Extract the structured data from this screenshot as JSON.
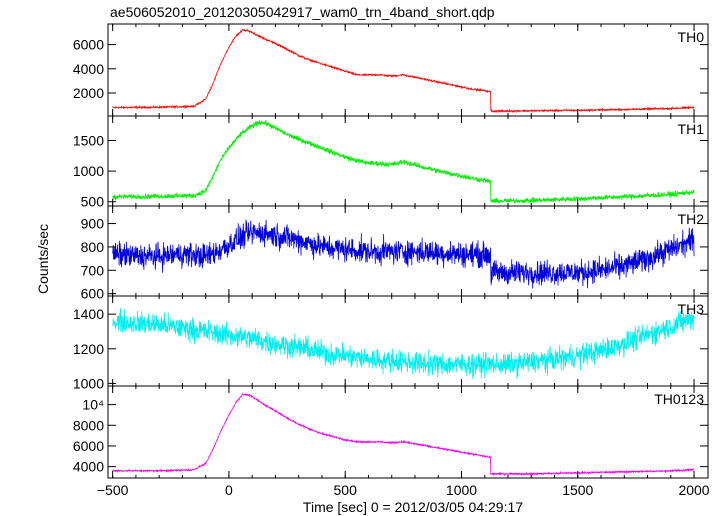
{
  "chart_data": {
    "type": "line",
    "title": "ae506052010_20120305042917_wam0_trn_4band_short.qdp",
    "xlabel": "Time [sec] 0 = 2012/03/05 04:29:17",
    "ylabel": "Counts/sec",
    "xlim": [
      -520,
      2060
    ],
    "xticks": [
      {
        "value": -500,
        "label": "−500"
      },
      {
        "value": 0,
        "label": "0"
      },
      {
        "value": 500,
        "label": "500"
      },
      {
        "value": 1000,
        "label": "1000"
      },
      {
        "value": 1500,
        "label": "1500"
      },
      {
        "value": 2000,
        "label": "2000"
      }
    ],
    "panels": [
      {
        "name": "TH0",
        "color": "#ff0000",
        "ylim": [
          100,
          7700
        ],
        "yticks": [
          {
            "value": 2000,
            "label": "2000"
          },
          {
            "value": 4000,
            "label": "4000"
          },
          {
            "value": 6000,
            "label": "6000"
          }
        ],
        "noise": 60,
        "x": [
          -500,
          -300,
          -150,
          -100,
          -70,
          -40,
          0,
          30,
          60,
          90,
          120,
          150,
          200,
          250,
          300,
          350,
          400,
          450,
          500,
          550,
          600,
          650,
          700,
          750,
          800,
          850,
          900,
          950,
          1000,
          1050,
          1100,
          1125,
          1126,
          1135,
          1300,
          1500,
          1700,
          1900,
          2000
        ],
        "y": [
          800,
          820,
          900,
          1500,
          2700,
          4200,
          5800,
          6700,
          7200,
          7100,
          6800,
          6500,
          6100,
          5600,
          5100,
          4700,
          4400,
          4100,
          3800,
          3500,
          3500,
          3500,
          3400,
          3500,
          3300,
          3100,
          2900,
          2700,
          2500,
          2300,
          2200,
          2100,
          550,
          500,
          530,
          570,
          640,
          720,
          800
        ]
      },
      {
        "name": "TH1",
        "color": "#00ee00",
        "ylim": [
          430,
          1900
        ],
        "yticks": [
          {
            "value": 500,
            "label": "500"
          },
          {
            "value": 1000,
            "label": "1000"
          },
          {
            "value": 1500,
            "label": "1500"
          }
        ],
        "noise": 35,
        "x": [
          -500,
          -300,
          -150,
          -100,
          -70,
          -40,
          0,
          50,
          100,
          130,
          160,
          200,
          250,
          300,
          350,
          400,
          450,
          500,
          550,
          600,
          650,
          700,
          750,
          800,
          850,
          900,
          950,
          1000,
          1050,
          1100,
          1125,
          1126,
          1135,
          1300,
          1500,
          1700,
          1900,
          2000
        ],
        "y": [
          580,
          590,
          600,
          680,
          900,
          1150,
          1380,
          1600,
          1740,
          1800,
          1780,
          1700,
          1600,
          1520,
          1450,
          1380,
          1300,
          1230,
          1170,
          1130,
          1120,
          1110,
          1150,
          1100,
          1050,
          1000,
          960,
          920,
          880,
          850,
          820,
          520,
          510,
          520,
          550,
          580,
          620,
          660
        ]
      },
      {
        "name": "TH2",
        "color": "#0000dd",
        "ylim": [
          590,
          975
        ],
        "yticks": [
          {
            "value": 600,
            "label": "600"
          },
          {
            "value": 700,
            "label": "700"
          },
          {
            "value": 800,
            "label": "800"
          },
          {
            "value": 900,
            "label": "900"
          }
        ],
        "noise": 45,
        "x": [
          -500,
          -400,
          -300,
          -200,
          -100,
          -50,
          0,
          50,
          100,
          150,
          200,
          300,
          400,
          500,
          600,
          700,
          800,
          900,
          1000,
          1125,
          1126,
          1200,
          1300,
          1400,
          1500,
          1600,
          1700,
          1800,
          1900,
          2000
        ],
        "y": [
          770,
          760,
          760,
          770,
          760,
          780,
          810,
          840,
          860,
          860,
          850,
          830,
          800,
          790,
          780,
          780,
          780,
          775,
          770,
          765,
          690,
          690,
          690,
          690,
          690,
          700,
          720,
          750,
          790,
          830
        ]
      },
      {
        "name": "TH3",
        "color": "#00eeee",
        "ylim": [
          985,
          1505
        ],
        "yticks": [
          {
            "value": 1000,
            "label": "1000"
          },
          {
            "value": 1200,
            "label": "1200"
          },
          {
            "value": 1400,
            "label": "1400"
          }
        ],
        "noise": 55,
        "x": [
          -500,
          -400,
          -300,
          -200,
          -100,
          0,
          100,
          200,
          300,
          400,
          500,
          600,
          700,
          800,
          900,
          1000,
          1100,
          1200,
          1300,
          1400,
          1500,
          1600,
          1700,
          1800,
          1900,
          2000
        ],
        "y": [
          1360,
          1350,
          1340,
          1320,
          1300,
          1280,
          1260,
          1230,
          1210,
          1180,
          1160,
          1140,
          1130,
          1120,
          1110,
          1110,
          1110,
          1110,
          1120,
          1140,
          1160,
          1190,
          1230,
          1280,
          1330,
          1380
        ]
      },
      {
        "name": "TH0123",
        "color": "#ee00ee",
        "ylim": [
          2900,
          11800
        ],
        "yticks": [
          {
            "value": 4000,
            "label": "4000"
          },
          {
            "value": 6000,
            "label": "6000"
          },
          {
            "value": 8000,
            "label": "8000"
          },
          {
            "value": 10000,
            "label": "10⁴"
          }
        ],
        "noise": 70,
        "x": [
          -500,
          -300,
          -150,
          -100,
          -70,
          -40,
          0,
          30,
          60,
          90,
          120,
          150,
          200,
          250,
          300,
          350,
          400,
          450,
          500,
          550,
          600,
          650,
          700,
          750,
          800,
          850,
          900,
          950,
          1000,
          1050,
          1100,
          1125,
          1126,
          1135,
          1300,
          1500,
          1700,
          1900,
          2000
        ],
        "y": [
          3600,
          3600,
          3700,
          4300,
          5600,
          7200,
          9000,
          10200,
          11000,
          10900,
          10500,
          10000,
          9400,
          8700,
          8100,
          7600,
          7200,
          6900,
          6600,
          6400,
          6400,
          6400,
          6300,
          6400,
          6200,
          6000,
          5800,
          5600,
          5400,
          5200,
          5000,
          4900,
          3300,
          3300,
          3300,
          3400,
          3500,
          3600,
          3700
        ]
      }
    ]
  }
}
